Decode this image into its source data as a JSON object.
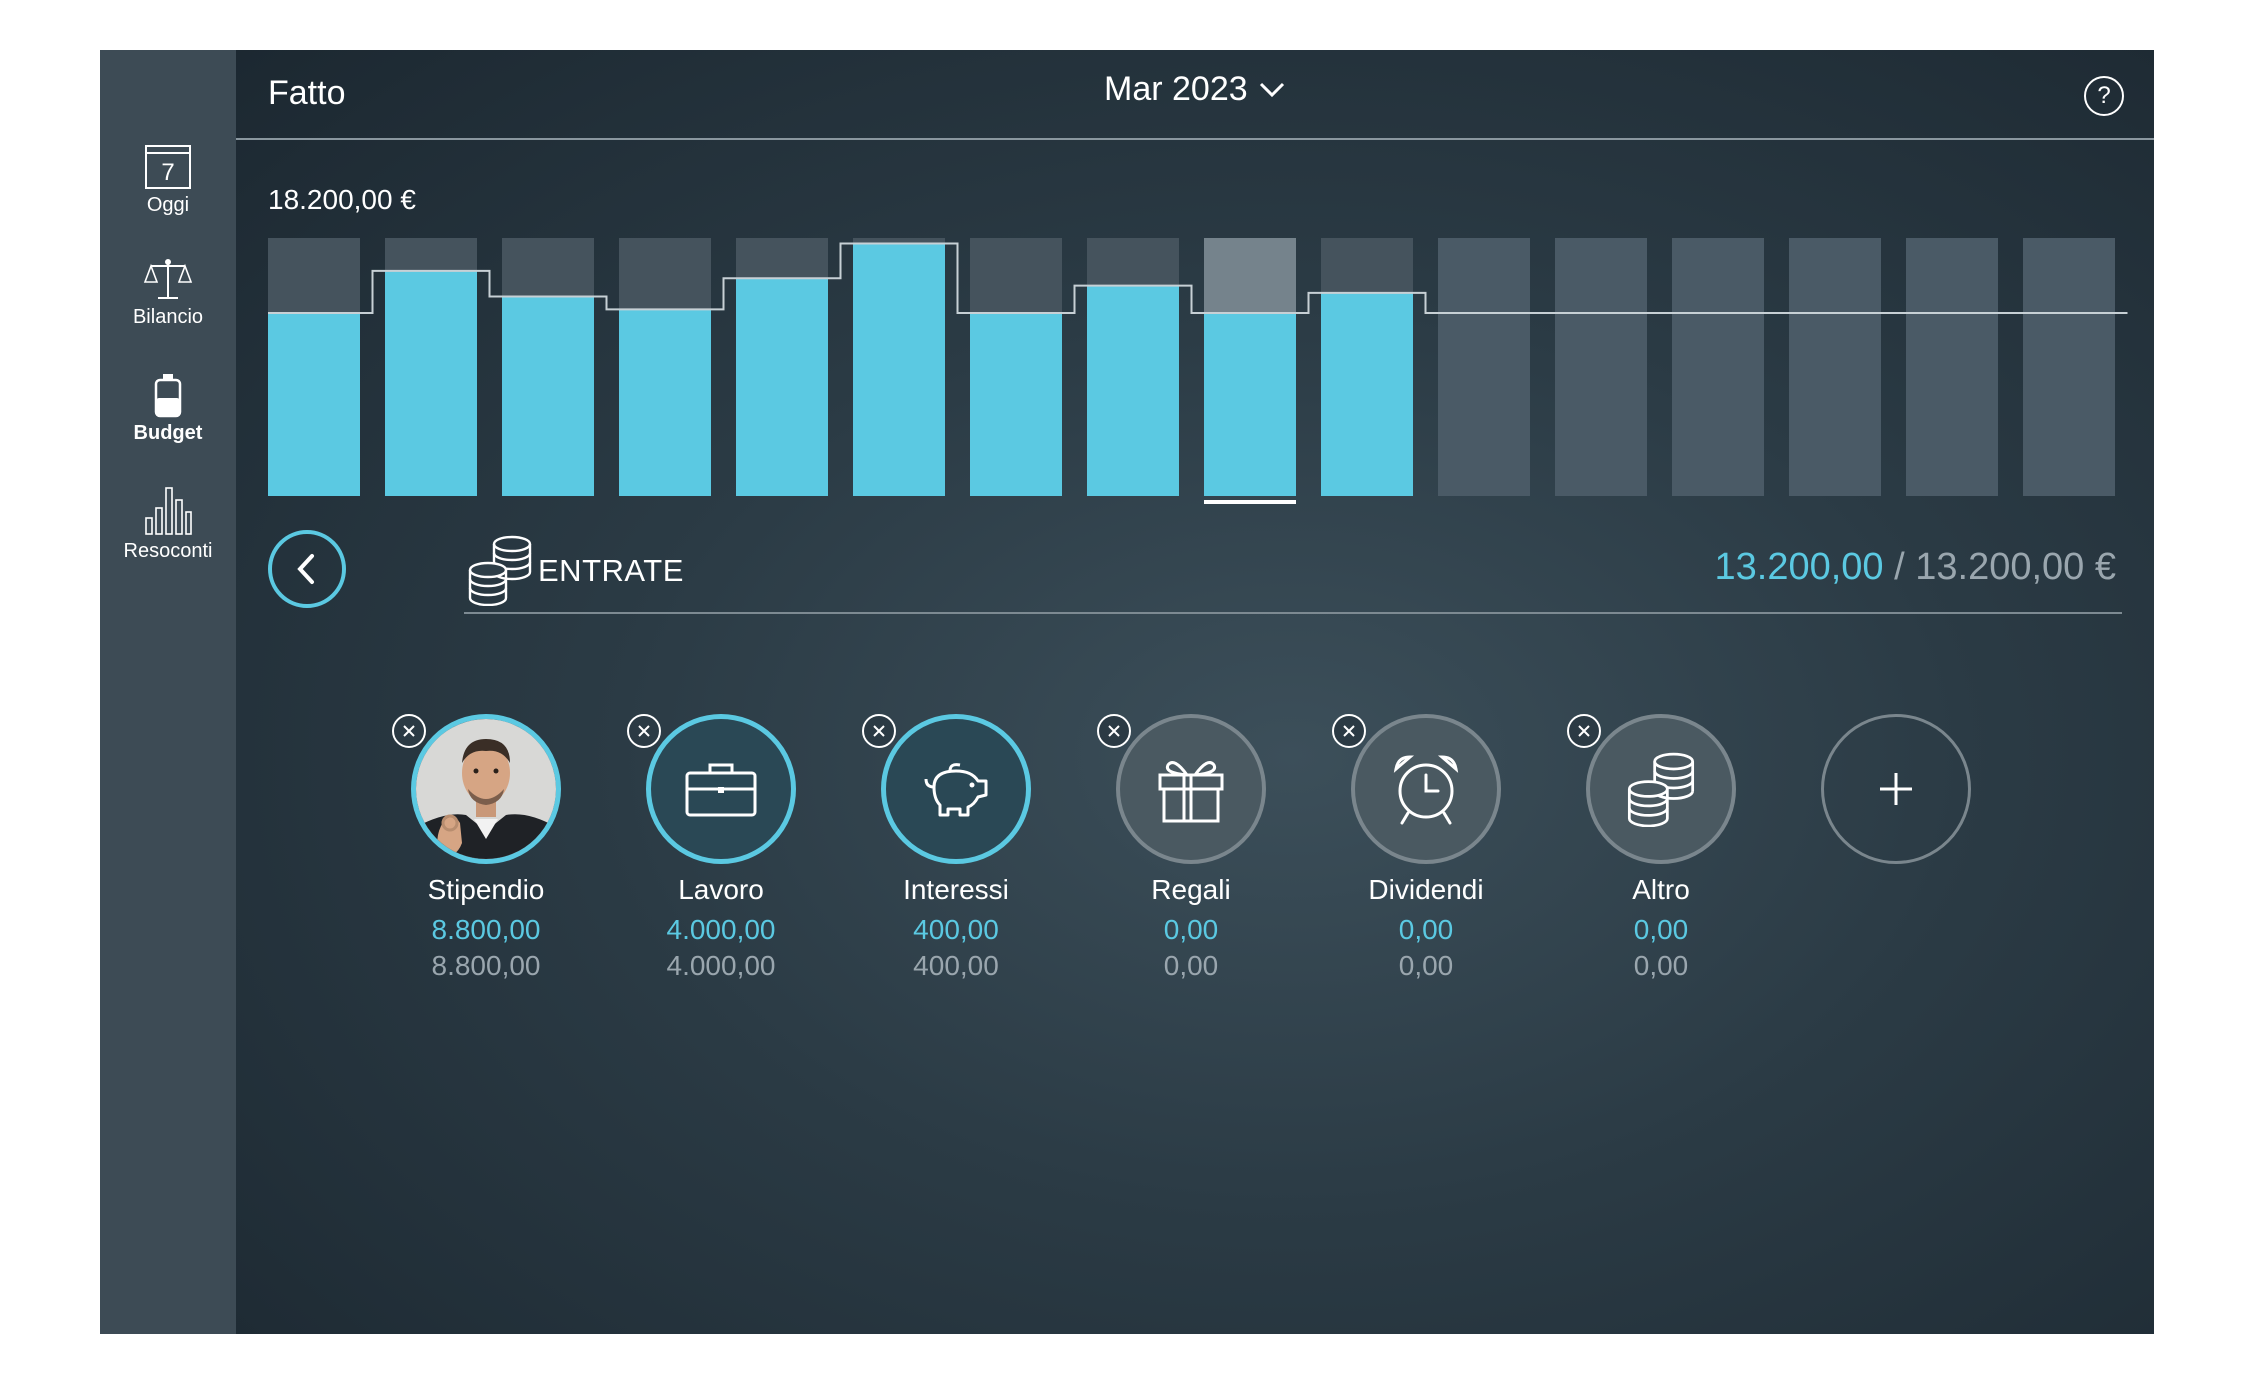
{
  "sidebar": {
    "items": [
      {
        "label": "Oggi",
        "icon": "calendar-icon",
        "day": "7"
      },
      {
        "label": "Bilancio",
        "icon": "scale-icon"
      },
      {
        "label": "Budget",
        "icon": "battery-icon"
      },
      {
        "label": "Resoconti",
        "icon": "bar-chart-icon"
      }
    ]
  },
  "header": {
    "done_label": "Fatto",
    "month": "Mar 2023",
    "help_label": "?"
  },
  "chart": {
    "amount_label": "18.200,00 €"
  },
  "chart_data": {
    "type": "bar",
    "ylim": [
      0,
      14100
    ],
    "selected_index": 8,
    "values": [
      10000,
      12300,
      10900,
      10200,
      11900,
      13800,
      10000,
      11500,
      10000,
      11100,
      0,
      0,
      0,
      0,
      0,
      0,
      0
    ],
    "budget": [
      10000,
      12300,
      10900,
      10200,
      11900,
      13800,
      10000,
      11500,
      10000,
      11100,
      10000,
      10000,
      10000,
      10000,
      10000,
      10000,
      10000
    ]
  },
  "section": {
    "title": "ENTRATE",
    "current": "13.200,00",
    "separator": " / ",
    "total": "13.200,00 €"
  },
  "categories": [
    {
      "name": "Stipendio",
      "current": "8.800,00",
      "budget": "8.800,00",
      "icon": "person-photo",
      "active": true
    },
    {
      "name": "Lavoro",
      "current": "4.000,00",
      "budget": "4.000,00",
      "icon": "briefcase-icon",
      "active": true
    },
    {
      "name": "Interessi",
      "current": "400,00",
      "budget": "400,00",
      "icon": "piggy-bank-icon",
      "active": true
    },
    {
      "name": "Regali",
      "current": "0,00",
      "budget": "0,00",
      "icon": "gift-icon",
      "active": false
    },
    {
      "name": "Dividendi",
      "current": "0,00",
      "budget": "0,00",
      "icon": "alarm-clock-icon",
      "active": false
    },
    {
      "name": "Altro",
      "current": "0,00",
      "budget": "0,00",
      "icon": "coins-icon",
      "active": false
    }
  ],
  "colors": {
    "accent": "#5bc9e2",
    "sidebar": "#3d4b55",
    "empty_bar": "#4a5a66",
    "budget_fill": "#45535d"
  }
}
